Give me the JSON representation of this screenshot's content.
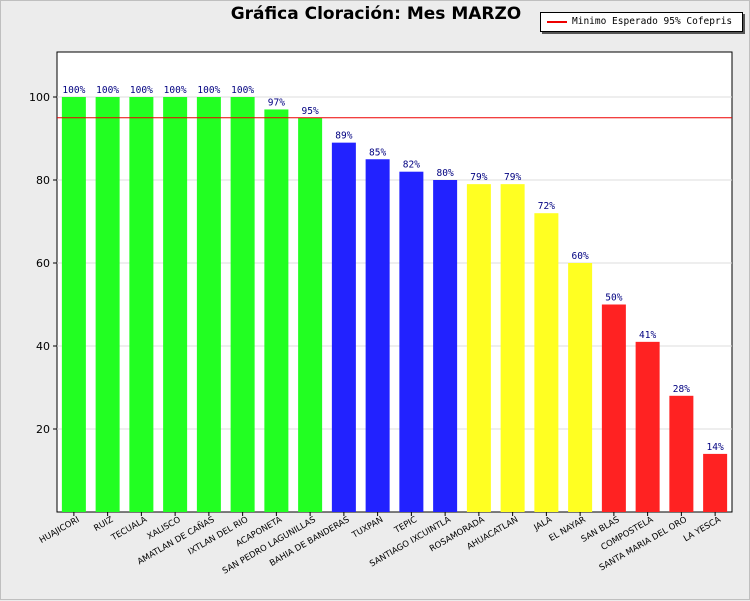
{
  "chart_data": {
    "type": "bar",
    "title": "Gráfica Cloración: Mes MARZO",
    "xlabel": "",
    "ylabel": "",
    "ylim": [
      0,
      100
    ],
    "yticks": [
      20,
      40,
      60,
      80,
      100
    ],
    "grid": true,
    "categories": [
      "HUAJICORI",
      "RUIZ",
      "TECUALA",
      "XALISCO",
      "AMATLAN DE CAÑAS",
      "IXTLAN DEL RIO",
      "ACAPONETA",
      "SAN PEDRO LAGUNILLAS",
      "BAHIA DE BANDERAS",
      "TUXPAN",
      "TEPIC",
      "SANTIAGO IXCUINTLA",
      "ROSAMORADA",
      "AHUACATLAN",
      "JALA",
      "EL NAYAR",
      "SAN BLAS",
      "COMPOSTELA",
      "SANTA MARIA DEL ORO",
      "LA YESCA"
    ],
    "values": [
      100,
      100,
      100,
      100,
      100,
      100,
      97,
      95,
      89,
      85,
      82,
      80,
      79,
      79,
      72,
      60,
      50,
      41,
      28,
      14
    ],
    "value_labels": [
      "100%",
      "100%",
      "100%",
      "100%",
      "100%",
      "100%",
      "97%",
      "95%",
      "89%",
      "85%",
      "82%",
      "80%",
      "79%",
      "79%",
      "72%",
      "60%",
      "50%",
      "41%",
      "28%",
      "14%"
    ],
    "bar_colors": [
      "#22ff22",
      "#22ff22",
      "#22ff22",
      "#22ff22",
      "#22ff22",
      "#22ff22",
      "#22ff22",
      "#22ff22",
      "#2222ff",
      "#2222ff",
      "#2222ff",
      "#2222ff",
      "#ffff22",
      "#ffff22",
      "#ffff22",
      "#ffff22",
      "#ff2222",
      "#ff2222",
      "#ff2222",
      "#ff2222"
    ],
    "reference_line": {
      "value": 95,
      "color": "#ee0000"
    },
    "legend": {
      "label": "Minimo Esperado 95% Cofepris",
      "placement": "top-right",
      "color": "#ee0000"
    }
  }
}
